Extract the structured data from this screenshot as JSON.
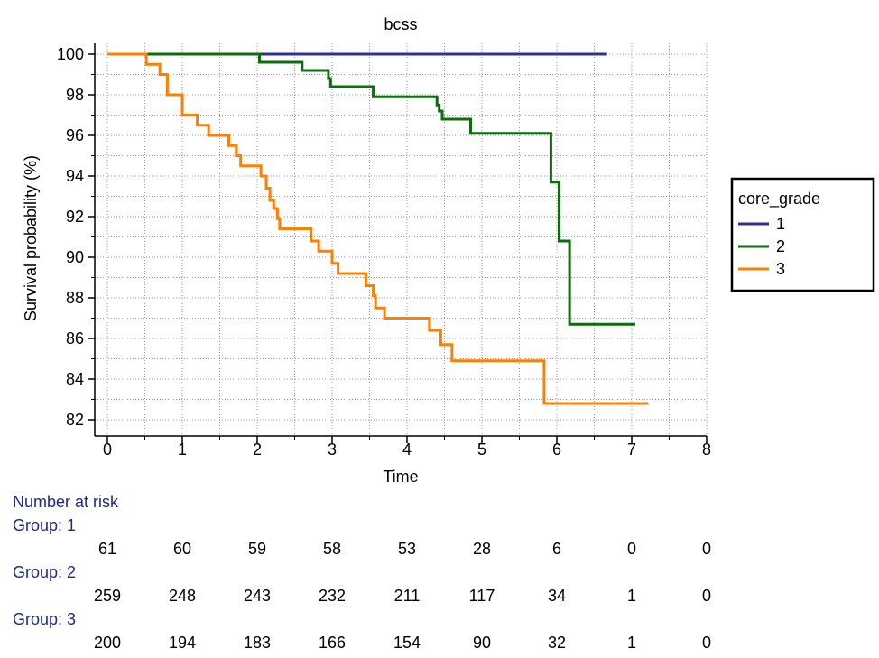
{
  "chart_data": {
    "type": "line",
    "subtype": "kaplan-meier step",
    "title": "bcss",
    "xlabel": "Time",
    "ylabel": "Survival probability (%)",
    "xlim": [
      0,
      8
    ],
    "ylim": [
      82,
      100
    ],
    "x_ticks": [
      "0",
      "1",
      "2",
      "3",
      "4",
      "5",
      "6",
      "7",
      "8"
    ],
    "y_ticks": [
      "82",
      "84",
      "86",
      "88",
      "90",
      "92",
      "94",
      "96",
      "98",
      "100"
    ],
    "grid": true,
    "legend": {
      "title": "core_grade",
      "placement": "right"
    },
    "series": [
      {
        "name": "1",
        "color": "#2e3192",
        "points": [
          [
            0,
            100
          ],
          [
            6.67,
            100
          ]
        ]
      },
      {
        "name": "2",
        "color": "#0e6b0e",
        "points": [
          [
            0,
            100
          ],
          [
            2.03,
            100
          ],
          [
            2.03,
            99.6
          ],
          [
            2.6,
            99.6
          ],
          [
            2.6,
            99.2
          ],
          [
            2.95,
            99.2
          ],
          [
            2.95,
            98.8
          ],
          [
            2.98,
            98.8
          ],
          [
            2.98,
            98.4
          ],
          [
            3.55,
            98.4
          ],
          [
            3.55,
            97.9
          ],
          [
            4.4,
            97.9
          ],
          [
            4.4,
            97.5
          ],
          [
            4.43,
            97.5
          ],
          [
            4.43,
            97.2
          ],
          [
            4.47,
            97.2
          ],
          [
            4.47,
            96.8
          ],
          [
            4.85,
            96.8
          ],
          [
            4.85,
            96.1
          ],
          [
            5.92,
            96.1
          ],
          [
            5.92,
            93.7
          ],
          [
            6.03,
            93.7
          ],
          [
            6.03,
            90.8
          ],
          [
            6.17,
            90.8
          ],
          [
            6.17,
            86.7
          ],
          [
            7.05,
            86.7
          ]
        ]
      },
      {
        "name": "3",
        "color": "#ff7f00",
        "points": [
          [
            0,
            100
          ],
          [
            0.52,
            100
          ],
          [
            0.52,
            99.5
          ],
          [
            0.7,
            99.5
          ],
          [
            0.7,
            99.0
          ],
          [
            0.8,
            99.0
          ],
          [
            0.8,
            98.0
          ],
          [
            1.0,
            98.0
          ],
          [
            1.0,
            97.0
          ],
          [
            1.2,
            97.0
          ],
          [
            1.2,
            96.5
          ],
          [
            1.35,
            96.5
          ],
          [
            1.35,
            96.0
          ],
          [
            1.62,
            96.0
          ],
          [
            1.62,
            95.5
          ],
          [
            1.72,
            95.5
          ],
          [
            1.72,
            95.0
          ],
          [
            1.78,
            95.0
          ],
          [
            1.78,
            94.5
          ],
          [
            2.05,
            94.5
          ],
          [
            2.05,
            94.0
          ],
          [
            2.12,
            94.0
          ],
          [
            2.12,
            93.4
          ],
          [
            2.17,
            93.4
          ],
          [
            2.17,
            92.8
          ],
          [
            2.22,
            92.8
          ],
          [
            2.22,
            92.4
          ],
          [
            2.27,
            92.4
          ],
          [
            2.27,
            91.9
          ],
          [
            2.3,
            91.9
          ],
          [
            2.3,
            91.4
          ],
          [
            2.72,
            91.4
          ],
          [
            2.72,
            90.8
          ],
          [
            2.82,
            90.8
          ],
          [
            2.82,
            90.3
          ],
          [
            3.0,
            90.3
          ],
          [
            3.0,
            89.7
          ],
          [
            3.08,
            89.7
          ],
          [
            3.08,
            89.2
          ],
          [
            3.45,
            89.2
          ],
          [
            3.45,
            88.6
          ],
          [
            3.55,
            88.6
          ],
          [
            3.55,
            88.1
          ],
          [
            3.58,
            88.1
          ],
          [
            3.58,
            87.5
          ],
          [
            3.7,
            87.5
          ],
          [
            3.7,
            87.0
          ],
          [
            4.3,
            87.0
          ],
          [
            4.3,
            86.4
          ],
          [
            4.45,
            86.4
          ],
          [
            4.45,
            85.7
          ],
          [
            4.6,
            85.7
          ],
          [
            4.6,
            84.9
          ],
          [
            5.83,
            84.9
          ],
          [
            5.83,
            82.8
          ],
          [
            7.22,
            82.8
          ]
        ]
      }
    ],
    "risk_table": {
      "title": "Number at risk",
      "time_points": [
        0,
        1,
        2,
        3,
        4,
        5,
        6,
        7,
        8
      ],
      "groups": [
        {
          "label": "Group: 1",
          "values": [
            61,
            60,
            59,
            58,
            53,
            28,
            6,
            0,
            0
          ]
        },
        {
          "label": "Group: 2",
          "values": [
            259,
            248,
            243,
            232,
            211,
            117,
            34,
            1,
            0
          ]
        },
        {
          "label": "Group: 3",
          "values": [
            200,
            194,
            183,
            166,
            154,
            90,
            32,
            1,
            0
          ]
        }
      ]
    }
  }
}
